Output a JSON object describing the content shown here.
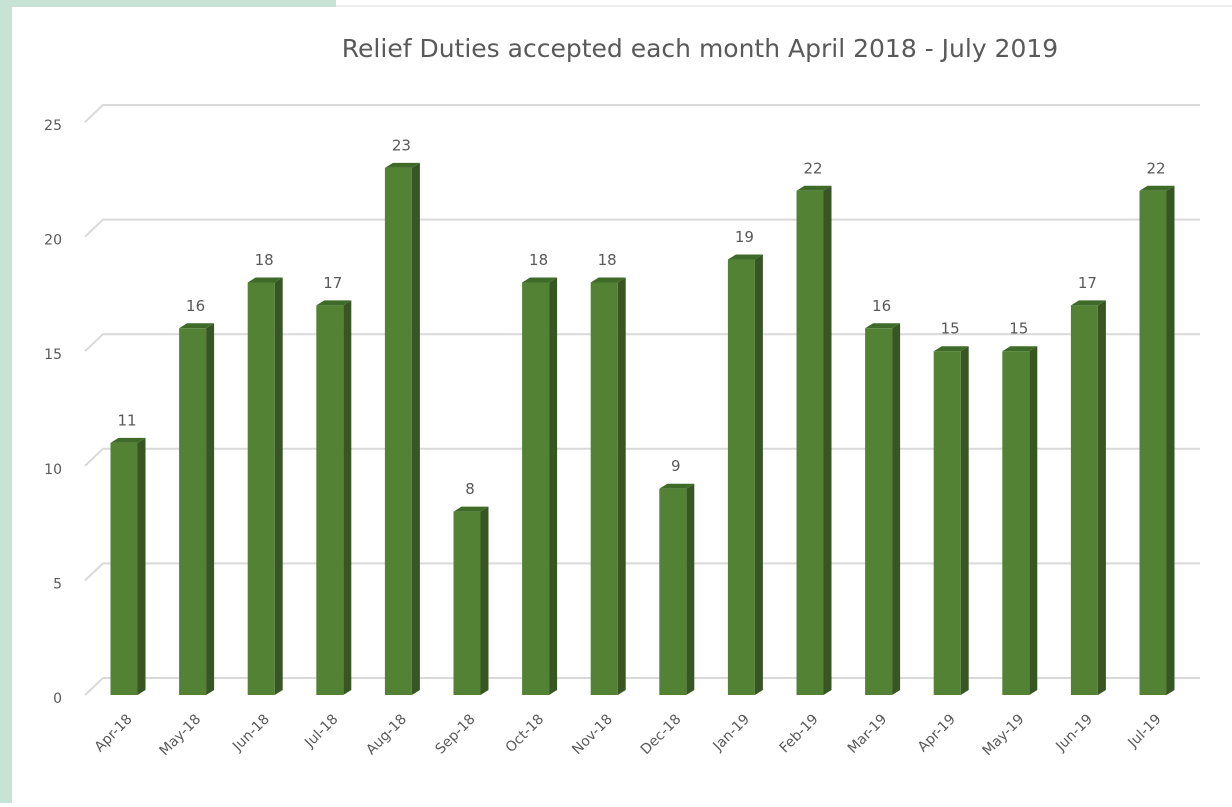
{
  "chart_data": {
    "type": "bar",
    "title": "Relief Duties accepted each month April 2018 - July 2019",
    "categories": [
      "Apr-18",
      "May-18",
      "Jun-18",
      "Jul-18",
      "Aug-18",
      "Sep-18",
      "Oct-18",
      "Nov-18",
      "Dec-18",
      "Jan-19",
      "Feb-19",
      "Mar-19",
      "Apr-19",
      "May-19",
      "Jun-19",
      "Jul-19"
    ],
    "values": [
      11,
      16,
      18,
      17,
      23,
      8,
      18,
      18,
      9,
      19,
      22,
      16,
      15,
      15,
      17,
      22
    ],
    "color": "#548235",
    "ylim": [
      0,
      25
    ],
    "yticks": [
      0,
      5,
      10,
      15,
      20,
      25
    ],
    "grid": true
  }
}
